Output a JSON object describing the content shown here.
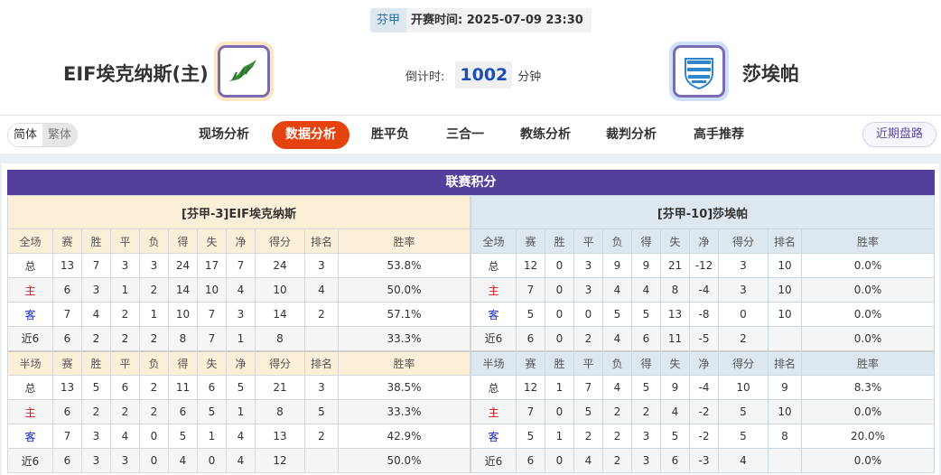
{
  "header": {
    "league": "芬甲",
    "kickoff_label": "开赛时间:",
    "kickoff_time": "2025-07-09 23:30",
    "home_team": "EIF埃克纳斯(主)",
    "away_team": "莎埃帕",
    "countdown_label": "倒计时:",
    "countdown_value": "1002",
    "countdown_unit": "分钟"
  },
  "nav": {
    "lang": [
      "简体",
      "繁体"
    ],
    "tabs": [
      "现场分析",
      "数据分析",
      "胜平负",
      "三合一",
      "教练分析",
      "裁判分析",
      "高手推荐"
    ],
    "active_tab": "数据分析",
    "recent_button": "近期盘路"
  },
  "section_title": "联赛积分",
  "columns_full": [
    "全场",
    "赛",
    "胜",
    "平",
    "负",
    "得",
    "失",
    "净",
    "得分",
    "排名",
    "胜率"
  ],
  "columns_half": [
    "半场",
    "赛",
    "胜",
    "平",
    "负",
    "得",
    "失",
    "净",
    "得分",
    "排名",
    "胜率"
  ],
  "tables": [
    {
      "team": "[芬甲-3]EIF埃克纳斯",
      "full": [
        [
          "总",
          "13",
          "7",
          "3",
          "3",
          "24",
          "17",
          "7",
          "24",
          "3",
          "53.8%"
        ],
        [
          "主",
          "6",
          "3",
          "1",
          "2",
          "14",
          "10",
          "4",
          "10",
          "4",
          "50.0%"
        ],
        [
          "客",
          "7",
          "4",
          "2",
          "1",
          "10",
          "7",
          "3",
          "14",
          "2",
          "57.1%"
        ],
        [
          "近6",
          "6",
          "2",
          "2",
          "2",
          "8",
          "7",
          "1",
          "8",
          "",
          "33.3%"
        ]
      ],
      "half": [
        [
          "总",
          "13",
          "5",
          "6",
          "2",
          "11",
          "6",
          "5",
          "21",
          "3",
          "38.5%"
        ],
        [
          "主",
          "6",
          "2",
          "2",
          "2",
          "6",
          "5",
          "1",
          "8",
          "5",
          "33.3%"
        ],
        [
          "客",
          "7",
          "3",
          "4",
          "0",
          "5",
          "1",
          "4",
          "13",
          "2",
          "42.9%"
        ],
        [
          "近6",
          "6",
          "3",
          "3",
          "0",
          "4",
          "0",
          "4",
          "12",
          "",
          "50.0%"
        ]
      ]
    },
    {
      "team": "[芬甲-10]莎埃帕",
      "full": [
        [
          "总",
          "12",
          "0",
          "3",
          "9",
          "9",
          "21",
          "-12",
          "3",
          "10",
          "0.0%"
        ],
        [
          "主",
          "7",
          "0",
          "3",
          "4",
          "4",
          "8",
          "-4",
          "3",
          "10",
          "0.0%"
        ],
        [
          "客",
          "5",
          "0",
          "0",
          "5",
          "5",
          "13",
          "-8",
          "0",
          "10",
          "0.0%"
        ],
        [
          "近6",
          "6",
          "0",
          "2",
          "4",
          "6",
          "11",
          "-5",
          "2",
          "",
          "0.0%"
        ]
      ],
      "half": [
        [
          "总",
          "12",
          "1",
          "7",
          "4",
          "5",
          "9",
          "-4",
          "10",
          "9",
          "8.3%"
        ],
        [
          "主",
          "7",
          "0",
          "5",
          "2",
          "2",
          "4",
          "-2",
          "5",
          "10",
          "0.0%"
        ],
        [
          "客",
          "5",
          "1",
          "2",
          "2",
          "3",
          "5",
          "-2",
          "5",
          "8",
          "20.0%"
        ],
        [
          "近6",
          "6",
          "0",
          "4",
          "2",
          "3",
          "6",
          "-3",
          "4",
          "",
          "0.0%"
        ]
      ]
    }
  ],
  "colors": {
    "accent": "#e4420f",
    "title_bar": "#553f9d",
    "home_label": "#e0141e",
    "away_label": "#1428c8",
    "countdown": "#1a4fb4"
  }
}
